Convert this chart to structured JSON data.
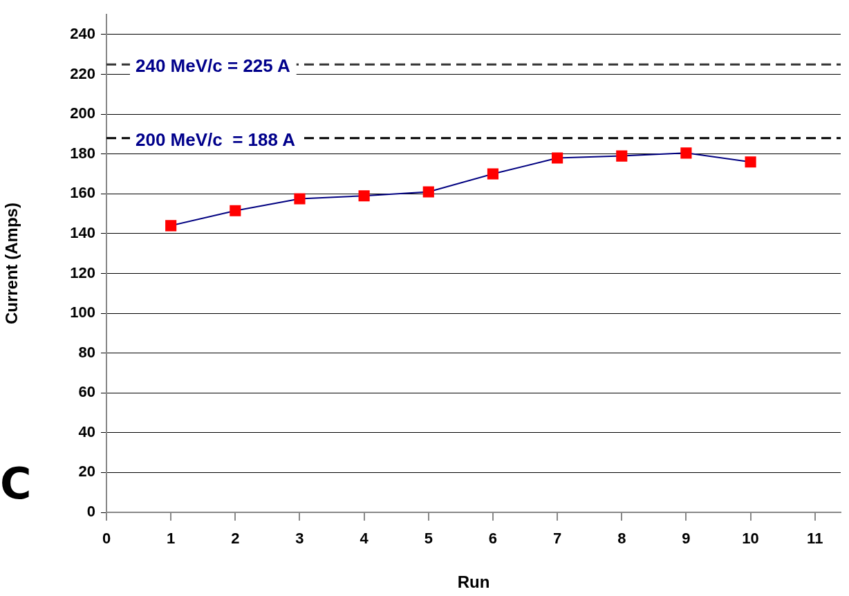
{
  "chart_data": {
    "type": "line",
    "xlabel": "Run",
    "ylabel": "Current (Amps)",
    "x": [
      1,
      2,
      3,
      4,
      5,
      6,
      7,
      8,
      9,
      10
    ],
    "series": [
      {
        "color": "#000080",
        "colors": [
          "#ff0000",
          "#ff0000",
          "#ff0000",
          "#ff0000",
          "#ff0000",
          "#ff0000",
          "#ff0000",
          "#ff0000",
          "#ff0000",
          "#ff0000"
        ],
        "values": [
          144,
          151.5,
          157.5,
          159,
          161,
          170,
          178,
          179,
          180.5,
          176
        ]
      }
    ],
    "xlim": [
      0,
      11.4
    ],
    "xticks": [
      0,
      1,
      2,
      3,
      4,
      5,
      6,
      7,
      8,
      9,
      10,
      11
    ],
    "ylim": [
      0,
      250
    ],
    "yticks": [
      0,
      20,
      40,
      60,
      80,
      100,
      120,
      140,
      160,
      180,
      200,
      220,
      240
    ],
    "grid": "y",
    "legend": false,
    "marker": "square",
    "line_style": "solid",
    "ref_lines": [
      {
        "axis": "y",
        "value": 225,
        "label": "240 MeV/c = 225 A",
        "color": "#333333",
        "line_style": "dashed"
      },
      {
        "axis": "y",
        "value": 188,
        "label": "200 MeV/c  = 188 A",
        "color": "#000000",
        "line_style": "dashed"
      }
    ],
    "annotations": [
      "C"
    ]
  }
}
